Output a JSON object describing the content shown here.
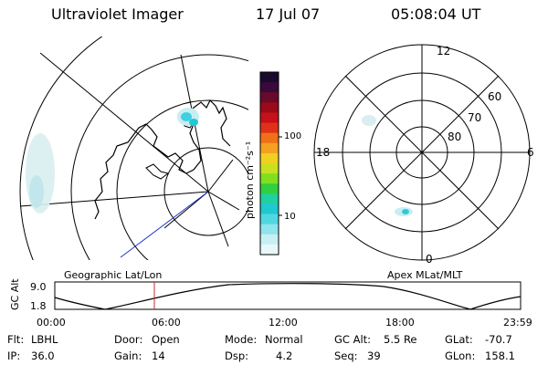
{
  "header": {
    "title": "Ultraviolet Imager",
    "date": "17 Jul 07",
    "time": "05:08:04 UT"
  },
  "colorbar": {
    "unit_label": "photon cm⁻²s⁻¹",
    "tick_labels": [
      "100",
      "10"
    ],
    "colors_top_to_bottom": [
      "#1a0a2e",
      "#3a0a3a",
      "#6a0a2a",
      "#9a0a1a",
      "#c8101a",
      "#e0301a",
      "#f07018",
      "#f4a020",
      "#f0d020",
      "#c8e020",
      "#80e020",
      "#30d040",
      "#20d0a0",
      "#20c8d0",
      "#50d8e0",
      "#90e4ec",
      "#c8f0f4",
      "#e8f8fa"
    ]
  },
  "map_geographic": {
    "caption": "Geographic Lat/Lon"
  },
  "map_polar": {
    "caption": "Apex MLat/MLT",
    "mlt_labels": {
      "top": "12",
      "left": "18",
      "right": "6",
      "bottom": "0"
    },
    "lat_labels": [
      "60",
      "70",
      "80"
    ]
  },
  "altitude_plot": {
    "ylabel": "GC Alt",
    "yticks": [
      "9.0",
      "1.8"
    ],
    "xticks": [
      "00:00",
      "06:00",
      "12:00",
      "18:00",
      "23:59"
    ],
    "marker_time_hours": 5.13
  },
  "info": {
    "flt_label": "Flt:",
    "flt_value": "LBHL",
    "ip_label": "IP:",
    "ip_value": "36.0",
    "door_label": "Door:",
    "door_value": "Open",
    "gain_label": "Gain:",
    "gain_value": "14",
    "mode_label": "Mode:",
    "mode_value": "Normal",
    "dsp_label": "Dsp:",
    "dsp_value": "4.2",
    "gcalt_label": "GC Alt:",
    "gcalt_value": "5.5 Re",
    "seq_label": "Seq:",
    "seq_value": "39",
    "glat_label": "GLat:",
    "glat_value": "-70.7",
    "glon_label": "GLon:",
    "glon_value": "158.1"
  }
}
